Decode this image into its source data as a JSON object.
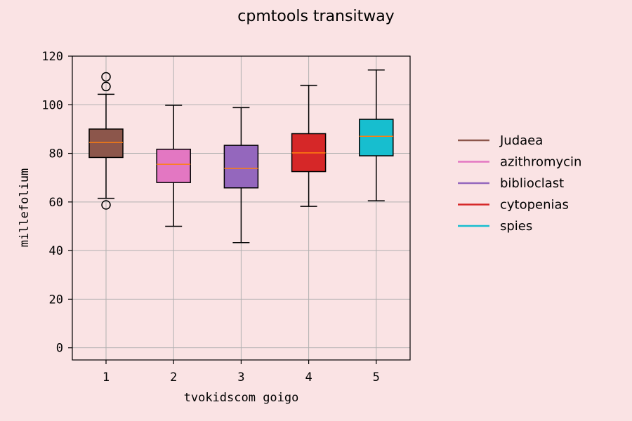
{
  "chart_data": {
    "type": "box",
    "title": "cpmtools transitway",
    "xlabel": "tvokidscom goigo",
    "ylabel": "millefolium",
    "ylim": [
      -5,
      120
    ],
    "yticks": [
      0,
      20,
      40,
      60,
      80,
      100,
      120
    ],
    "categories": [
      "1",
      "2",
      "3",
      "4",
      "5"
    ],
    "grid": true,
    "legend_position": "right",
    "series": [
      {
        "name": "Judaea",
        "color": "#8c564b",
        "whisker_low": 61.5,
        "q1": 78.3,
        "median": 84.5,
        "q3": 90.0,
        "whisker_high": 104.3,
        "outliers": [
          111.5,
          107.5,
          58.8
        ]
      },
      {
        "name": "azithromycin",
        "color": "#e377c2",
        "whisker_low": 50.0,
        "q1": 68.0,
        "median": 75.5,
        "q3": 81.7,
        "whisker_high": 99.8,
        "outliers": []
      },
      {
        "name": "biblioclast",
        "color": "#9467bd",
        "whisker_low": 43.3,
        "q1": 65.8,
        "median": 73.8,
        "q3": 83.3,
        "whisker_high": 98.8,
        "outliers": []
      },
      {
        "name": "cytopenias",
        "color": "#d62728",
        "whisker_low": 58.2,
        "q1": 72.5,
        "median": 80.2,
        "q3": 88.1,
        "whisker_high": 108.0,
        "outliers": []
      },
      {
        "name": "spies",
        "color": "#17becf",
        "whisker_low": 60.5,
        "q1": 79.0,
        "median": 87.0,
        "q3": 94.0,
        "whisker_high": 114.3,
        "outliers": []
      }
    ],
    "median_color": "#ff7f0e"
  }
}
